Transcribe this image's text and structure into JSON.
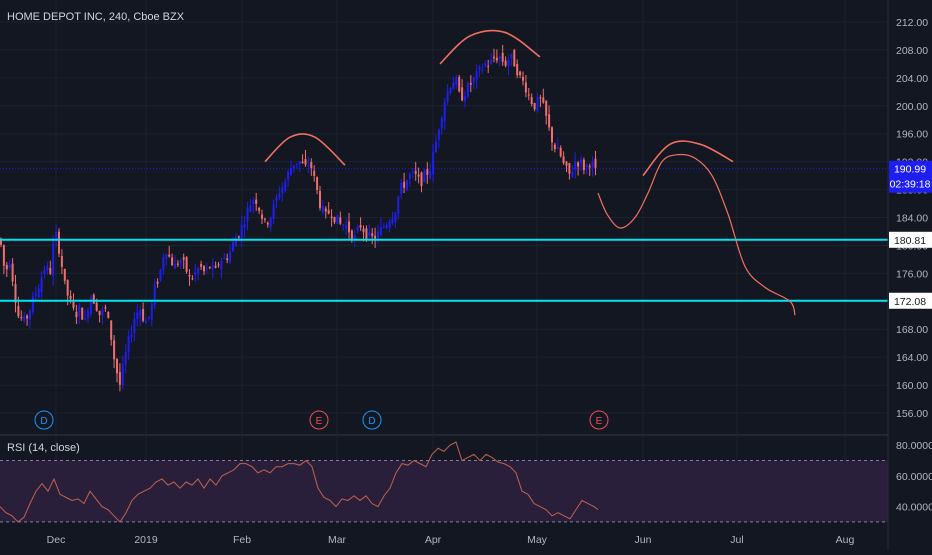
{
  "chart_data": {
    "type": "candlestick",
    "symbol_label": "HOME DEPOT INC, 240, Cboe BZX",
    "price_axis": {
      "ticks": [
        "212.00",
        "208.00",
        "204.00",
        "200.00",
        "196.00",
        "192.00",
        "188.00",
        "184.00",
        "180.00",
        "176.00",
        "172.00",
        "168.00",
        "164.00",
        "160.00",
        "156.00"
      ],
      "range": [
        153,
        214
      ]
    },
    "time_axis": {
      "ticks": [
        "Dec",
        "2019",
        "Feb",
        "Mar",
        "Apr",
        "May",
        "Jun",
        "Jul",
        "Aug"
      ]
    },
    "price_path": [
      [
        0,
        181
      ],
      [
        5,
        176
      ],
      [
        10,
        178
      ],
      [
        18,
        170
      ],
      [
        25,
        169
      ],
      [
        30,
        171
      ],
      [
        38,
        174
      ],
      [
        45,
        177
      ],
      [
        50,
        176
      ],
      [
        55,
        182
      ],
      [
        60,
        179
      ],
      [
        65,
        174
      ],
      [
        70,
        172
      ],
      [
        75,
        170
      ],
      [
        80,
        171
      ],
      [
        85,
        169
      ],
      [
        90,
        173
      ],
      [
        95,
        172
      ],
      [
        100,
        170
      ],
      [
        105,
        171
      ],
      [
        110,
        168
      ],
      [
        115,
        163
      ],
      [
        120,
        160
      ],
      [
        125,
        164
      ],
      [
        130,
        167
      ],
      [
        135,
        170
      ],
      [
        140,
        171
      ],
      [
        145,
        169
      ],
      [
        150,
        170
      ],
      [
        155,
        174
      ],
      [
        160,
        176
      ],
      [
        165,
        180
      ],
      [
        170,
        178
      ],
      [
        175,
        177
      ],
      [
        180,
        178
      ],
      [
        185,
        177
      ],
      [
        190,
        175
      ],
      [
        195,
        176
      ],
      [
        200,
        177
      ],
      [
        205,
        176
      ],
      [
        210,
        177
      ],
      [
        215,
        176
      ],
      [
        220,
        178
      ],
      [
        225,
        178
      ],
      [
        230,
        179
      ],
      [
        235,
        181
      ],
      [
        240,
        182
      ],
      [
        245,
        184
      ],
      [
        250,
        186
      ],
      [
        255,
        187
      ],
      [
        260,
        185
      ],
      [
        265,
        183
      ],
      [
        270,
        184
      ],
      [
        275,
        186
      ],
      [
        280,
        188
      ],
      [
        285,
        189
      ],
      [
        290,
        191
      ],
      [
        295,
        192
      ],
      [
        300,
        192
      ],
      [
        305,
        191
      ],
      [
        310,
        192
      ],
      [
        315,
        189
      ],
      [
        320,
        186
      ],
      [
        325,
        184
      ],
      [
        330,
        185
      ],
      [
        335,
        184
      ],
      [
        340,
        183
      ],
      [
        345,
        183
      ],
      [
        350,
        182
      ],
      [
        355,
        181
      ],
      [
        360,
        183
      ],
      [
        365,
        182
      ],
      [
        370,
        181
      ],
      [
        375,
        181
      ],
      [
        380,
        182
      ],
      [
        385,
        183
      ],
      [
        390,
        184
      ],
      [
        395,
        185
      ],
      [
        400,
        188
      ],
      [
        405,
        189
      ],
      [
        410,
        190
      ],
      [
        415,
        190
      ],
      [
        420,
        189
      ],
      [
        425,
        190
      ],
      [
        430,
        191
      ],
      [
        435,
        194
      ],
      [
        440,
        198
      ],
      [
        445,
        201
      ],
      [
        450,
        203
      ],
      [
        455,
        204
      ],
      [
        460,
        201
      ],
      [
        465,
        202
      ],
      [
        470,
        203
      ],
      [
        475,
        204
      ],
      [
        480,
        205
      ],
      [
        485,
        206
      ],
      [
        490,
        206
      ],
      [
        495,
        207
      ],
      [
        500,
        207
      ],
      [
        505,
        206
      ],
      [
        510,
        207
      ],
      [
        515,
        206
      ],
      [
        520,
        204
      ],
      [
        525,
        203
      ],
      [
        530,
        201
      ],
      [
        535,
        200
      ],
      [
        540,
        201
      ],
      [
        545,
        199
      ],
      [
        550,
        196
      ],
      [
        555,
        194
      ],
      [
        560,
        193
      ],
      [
        565,
        191
      ],
      [
        570,
        190
      ],
      [
        575,
        192
      ],
      [
        580,
        192
      ],
      [
        585,
        191
      ],
      [
        590,
        192
      ],
      [
        595,
        191
      ],
      [
        598,
        188
      ]
    ],
    "rsi": {
      "label": "RSI (14, close)",
      "ticks": [
        "80.0000",
        "60.0000",
        "40.0000"
      ],
      "range": [
        28,
        86
      ],
      "upper_band": 70,
      "lower_band": 30,
      "values": [
        [
          0,
          40
        ],
        [
          6,
          36
        ],
        [
          12,
          34
        ],
        [
          18,
          30
        ],
        [
          24,
          33
        ],
        [
          30,
          42
        ],
        [
          36,
          50
        ],
        [
          42,
          55
        ],
        [
          48,
          50
        ],
        [
          54,
          58
        ],
        [
          60,
          48
        ],
        [
          66,
          46
        ],
        [
          72,
          44
        ],
        [
          78,
          45
        ],
        [
          84,
          42
        ],
        [
          90,
          50
        ],
        [
          96,
          45
        ],
        [
          102,
          40
        ],
        [
          108,
          38
        ],
        [
          114,
          34
        ],
        [
          120,
          30
        ],
        [
          126,
          36
        ],
        [
          132,
          44
        ],
        [
          138,
          48
        ],
        [
          144,
          50
        ],
        [
          150,
          52
        ],
        [
          156,
          56
        ],
        [
          162,
          58
        ],
        [
          168,
          54
        ],
        [
          174,
          56
        ],
        [
          180,
          52
        ],
        [
          186,
          56
        ],
        [
          192,
          54
        ],
        [
          198,
          58
        ],
        [
          204,
          52
        ],
        [
          210,
          58
        ],
        [
          216,
          54
        ],
        [
          222,
          60
        ],
        [
          228,
          62
        ],
        [
          234,
          64
        ],
        [
          240,
          68
        ],
        [
          246,
          68
        ],
        [
          252,
          66
        ],
        [
          258,
          62
        ],
        [
          264,
          64
        ],
        [
          270,
          62
        ],
        [
          276,
          66
        ],
        [
          282,
          66
        ],
        [
          288,
          68
        ],
        [
          294,
          68
        ],
        [
          300,
          67
        ],
        [
          306,
          70
        ],
        [
          312,
          66
        ],
        [
          318,
          52
        ],
        [
          324,
          46
        ],
        [
          330,
          44
        ],
        [
          336,
          40
        ],
        [
          342,
          45
        ],
        [
          348,
          44
        ],
        [
          354,
          47
        ],
        [
          360,
          44
        ],
        [
          366,
          47
        ],
        [
          372,
          42
        ],
        [
          378,
          40
        ],
        [
          384,
          47
        ],
        [
          390,
          52
        ],
        [
          396,
          62
        ],
        [
          402,
          68
        ],
        [
          408,
          67
        ],
        [
          414,
          70
        ],
        [
          420,
          68
        ],
        [
          426,
          66
        ],
        [
          432,
          74
        ],
        [
          438,
          78
        ],
        [
          444,
          76
        ],
        [
          450,
          80
        ],
        [
          456,
          82
        ],
        [
          462,
          70
        ],
        [
          468,
          72
        ],
        [
          474,
          74
        ],
        [
          480,
          70
        ],
        [
          486,
          74
        ],
        [
          492,
          72
        ],
        [
          498,
          69
        ],
        [
          504,
          68
        ],
        [
          510,
          66
        ],
        [
          516,
          62
        ],
        [
          522,
          50
        ],
        [
          528,
          48
        ],
        [
          534,
          42
        ],
        [
          540,
          40
        ],
        [
          546,
          38
        ],
        [
          552,
          34
        ],
        [
          558,
          36
        ],
        [
          564,
          34
        ],
        [
          570,
          32
        ],
        [
          576,
          38
        ],
        [
          582,
          44
        ],
        [
          588,
          42
        ],
        [
          594,
          40
        ],
        [
          598,
          38
        ]
      ]
    },
    "horizontal_lines": [
      {
        "price": 180.81,
        "label": "180.81",
        "color": "#00e5f0"
      },
      {
        "price": 172.08,
        "label": "172.08",
        "color": "#00e5f0"
      }
    ],
    "current_price": {
      "label": "190.99",
      "countdown": "02:39:18",
      "price": 190.99,
      "color": "#1e1ef0"
    },
    "annotations": [
      {
        "kind": "arc",
        "points": [
          [
            265,
            192
          ],
          [
            290,
            195.5
          ],
          [
            315,
            195.5
          ],
          [
            345,
            191.5
          ]
        ]
      },
      {
        "kind": "arc",
        "points": [
          [
            440,
            206
          ],
          [
            470,
            210
          ],
          [
            505,
            210.5
          ],
          [
            540,
            207
          ]
        ]
      },
      {
        "kind": "arc",
        "points": [
          [
            643,
            190
          ],
          [
            670,
            194.5
          ],
          [
            700,
            194.5
          ],
          [
            733,
            192
          ]
        ]
      },
      {
        "kind": "curve",
        "points": [
          [
            598,
            187.5
          ],
          [
            607,
            184.5
          ],
          [
            620,
            182.5
          ],
          [
            635,
            184
          ],
          [
            648,
            187.5
          ],
          [
            662,
            192
          ],
          [
            678,
            193
          ],
          [
            695,
            192.5
          ],
          [
            712,
            190
          ],
          [
            728,
            184.5
          ],
          [
            745,
            177
          ],
          [
            765,
            174
          ],
          [
            790,
            172
          ],
          [
            795,
            170
          ]
        ]
      }
    ],
    "events": [
      {
        "label": "D",
        "color": "#2196f3",
        "x": 44
      },
      {
        "label": "E",
        "color": "#f0504f",
        "x": 319
      },
      {
        "label": "D",
        "color": "#2196f3",
        "x": 372
      },
      {
        "label": "E",
        "color": "#f0504f",
        "x": 599
      }
    ],
    "colors": {
      "background": "#131722",
      "up": "#1e1ef0",
      "down": "#ef6f6c",
      "grid": "#1e2230",
      "rsi_line": "#c0624f",
      "rsi_band_fill": "#2a1f3a",
      "drawing": "#f0705f"
    }
  }
}
